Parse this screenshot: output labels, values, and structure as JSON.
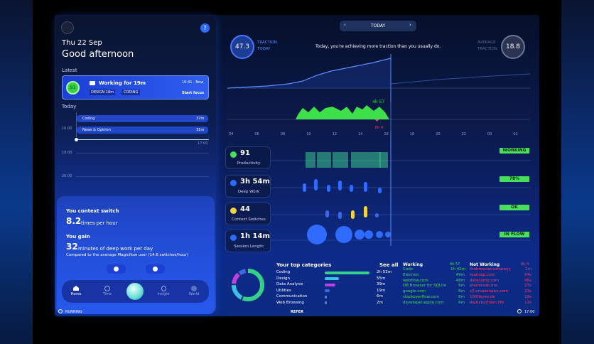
{
  "left": {
    "date": "Thu 22 Sep",
    "greeting": "Good afternoon",
    "latest_label": "Latest",
    "current": {
      "score": "91",
      "title": "Working for 19m",
      "time": "16:41 - Now",
      "tag1": "DESIGN 18m",
      "tag2": "CODING",
      "action": "Start focus"
    },
    "today_label": "Today",
    "times": [
      "16:00",
      "18:00",
      "20:00",
      "17:00"
    ],
    "blocks": [
      {
        "label": "Coding",
        "dur": "37m"
      },
      {
        "label": "News & Opinion",
        "dur": "31m"
      }
    ],
    "switch_title": "You context switch",
    "switch_value": "8.2",
    "switch_unit": "times per hour",
    "gain_title": "You gain",
    "gain_value": "32",
    "gain_unit": "minutes of deep work per day",
    "gain_note": "Compared to the average Magicflow user (14.6 switches/hour)",
    "nav": [
      "Home",
      "Time",
      "",
      "Insight",
      "World"
    ],
    "status": "RUNNING"
  },
  "top": {
    "day": "TODAY",
    "traction_value": "47.3",
    "traction_label1": "TRACTION",
    "traction_label2": "TODAY",
    "message": "Today, you're achieving more traction than you usually do.",
    "avg_label1": "AVERAGE",
    "avg_label2": "TRACTION",
    "avg_value": "18.8"
  },
  "timeline": {
    "hours": [
      "04",
      "06",
      "08",
      "10",
      "12",
      "14",
      "16",
      "18",
      "20",
      "22",
      "00",
      "02"
    ],
    "working": "4h 57",
    "not_working": "0h 4"
  },
  "metrics": [
    {
      "value": "91",
      "label": "Productivity",
      "tag": "WORKING",
      "icon": "briefcase-icon"
    },
    {
      "value": "3h 54m",
      "label": "Deep Work",
      "tag": "78%",
      "icon": "brain-icon"
    },
    {
      "value": "44",
      "label": "Context Switches",
      "tag": "OK",
      "icon": "switch-icon"
    },
    {
      "value": "1h 14m",
      "label": "Session Length",
      "tag": "IN FLOW",
      "icon": "clock-icon"
    }
  ],
  "categories": {
    "title": "Your top categories",
    "see_all": "See all",
    "items": [
      {
        "name": "Coding",
        "dur": "2h 52m",
        "pct": 0.95,
        "color": "#34d08a"
      },
      {
        "name": "Design",
        "dur": "55m",
        "pct": 0.3,
        "color": "#3cc1e6"
      },
      {
        "name": "Data Analysis",
        "dur": "39m",
        "pct": 0.22,
        "color": "#c23fe0"
      },
      {
        "name": "Utilities",
        "dur": "19m",
        "pct": 0.11,
        "color": "#3e67e8"
      },
      {
        "name": "Communication",
        "dur": "6m",
        "pct": 0.04,
        "color": "#6e7fbf"
      },
      {
        "name": "Web Browsing",
        "dur": "2m",
        "pct": 0.02,
        "color": "#6e7fbf"
      }
    ],
    "refer": "REFER"
  },
  "working_list": {
    "title": "Working",
    "total": "4h 57",
    "items": [
      [
        "Code",
        "1h 42m"
      ],
      [
        "Electron",
        "49m"
      ],
      [
        "webflow.com",
        "48m"
      ],
      [
        "DB Browser for SQLite",
        "6m"
      ],
      [
        "google.com",
        "6m"
      ],
      [
        "stackoverflow.com",
        "6m"
      ],
      [
        "developer.apple.com",
        "6m"
      ]
    ]
  },
  "notworking_list": {
    "title": "Not Working",
    "total": "0h 4",
    "items": [
      [
        "thebrowser.company",
        "1m"
      ],
      [
        "teamsql.com",
        "54s"
      ],
      [
        "datacamp.com",
        "45s"
      ],
      [
        "pfandrade.me",
        "27s"
      ],
      [
        "s3.amazonaws.com",
        "23s"
      ],
      [
        "1000eyes.de",
        "19s"
      ],
      [
        "digitalscitizen.life",
        "12s"
      ]
    ]
  },
  "clock": "17:00",
  "colors": {
    "accent": "#48e05a",
    "blue": "#2f6bff",
    "red": "#ff3b6b",
    "yellow": "#f3d244"
  }
}
